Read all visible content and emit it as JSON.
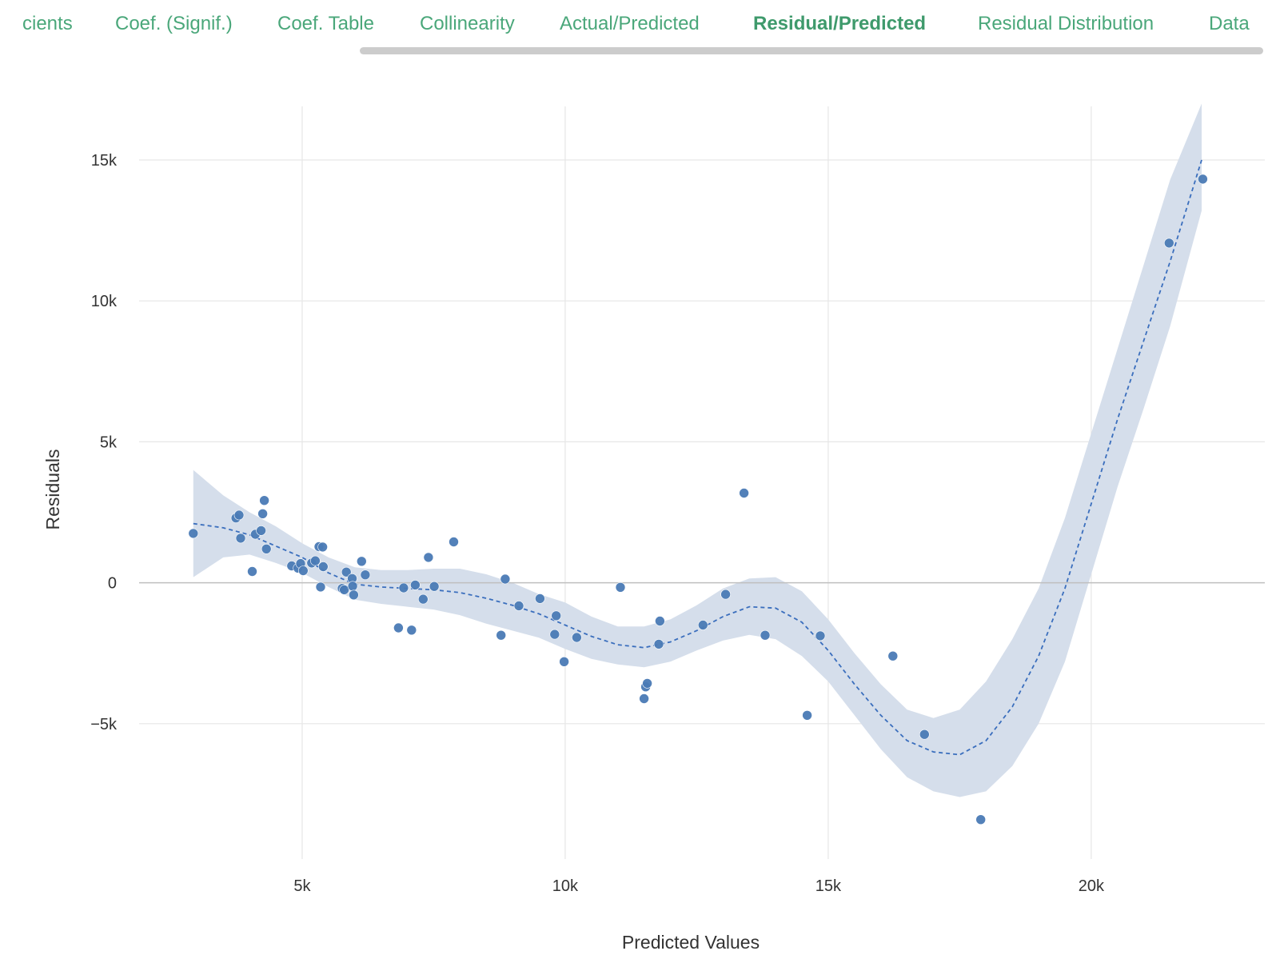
{
  "tabs": [
    {
      "label": "cients",
      "active": false
    },
    {
      "label": "Coef. (Signif.)",
      "active": false
    },
    {
      "label": "Coef. Table",
      "active": false
    },
    {
      "label": "Collinearity",
      "active": false
    },
    {
      "label": "Actual/Predicted",
      "active": false
    },
    {
      "label": "Residual/Predicted",
      "active": true
    },
    {
      "label": "Residual Distribution",
      "active": false
    },
    {
      "label": "Data",
      "active": false
    }
  ],
  "colors": {
    "accent": "#4aa77a",
    "point": "#4a7ab5",
    "band": "#d5deeb",
    "trend": "#3a6ebd",
    "grid": "#e6e6e6",
    "zero_line": "#bfbfbf"
  },
  "chart_data": {
    "type": "scatter",
    "xlabel": "Predicted Values",
    "ylabel": "Residuals",
    "xlim": [
      1900,
      23300
    ],
    "ylim": [
      -9800,
      16900
    ],
    "xticks": [
      {
        "value": 5000,
        "label": "5k"
      },
      {
        "value": 10000,
        "label": "10k"
      },
      {
        "value": 15000,
        "label": "15k"
      },
      {
        "value": 20000,
        "label": "20k"
      }
    ],
    "yticks": [
      {
        "value": 15000,
        "label": "15k"
      },
      {
        "value": 10000,
        "label": "10k"
      },
      {
        "value": 5000,
        "label": "5k"
      },
      {
        "value": 0,
        "label": "0"
      },
      {
        "value": -5000,
        "label": "−5k"
      }
    ],
    "grid": true,
    "points": [
      [
        2930,
        1750
      ],
      [
        3740,
        2300
      ],
      [
        3800,
        2400
      ],
      [
        3830,
        1580
      ],
      [
        4050,
        400
      ],
      [
        4110,
        1720
      ],
      [
        4220,
        1850
      ],
      [
        4250,
        2450
      ],
      [
        4280,
        2920
      ],
      [
        4320,
        1200
      ],
      [
        4800,
        600
      ],
      [
        4920,
        520
      ],
      [
        4970,
        680
      ],
      [
        5020,
        430
      ],
      [
        5180,
        700
      ],
      [
        5250,
        780
      ],
      [
        5320,
        1280
      ],
      [
        5350,
        -150
      ],
      [
        5390,
        1270
      ],
      [
        5400,
        570
      ],
      [
        5760,
        -200
      ],
      [
        5800,
        -250
      ],
      [
        5840,
        380
      ],
      [
        5950,
        150
      ],
      [
        5960,
        -120
      ],
      [
        5980,
        -430
      ],
      [
        6130,
        760
      ],
      [
        6200,
        280
      ],
      [
        6830,
        -1600
      ],
      [
        6930,
        -180
      ],
      [
        7080,
        -1680
      ],
      [
        7150,
        -80
      ],
      [
        7300,
        -580
      ],
      [
        7400,
        900
      ],
      [
        7510,
        -130
      ],
      [
        7880,
        1450
      ],
      [
        8780,
        -1860
      ],
      [
        8860,
        130
      ],
      [
        9120,
        -820
      ],
      [
        9520,
        -560
      ],
      [
        9800,
        -1830
      ],
      [
        9830,
        -1170
      ],
      [
        9980,
        -2800
      ],
      [
        10220,
        -1940
      ],
      [
        11050,
        -160
      ],
      [
        11500,
        -4110
      ],
      [
        11530,
        -3690
      ],
      [
        11560,
        -3570
      ],
      [
        11780,
        -2180
      ],
      [
        11800,
        -1360
      ],
      [
        12620,
        -1500
      ],
      [
        13050,
        -410
      ],
      [
        13400,
        3180
      ],
      [
        13800,
        -1860
      ],
      [
        14600,
        -4700
      ],
      [
        14850,
        -1880
      ],
      [
        16230,
        -2600
      ],
      [
        16830,
        -5380
      ],
      [
        17900,
        -8400
      ],
      [
        21480,
        12050
      ],
      [
        22120,
        14320
      ]
    ],
    "trend": [
      [
        2930,
        2100
      ],
      [
        3500,
        1950
      ],
      [
        4000,
        1700
      ],
      [
        4500,
        1300
      ],
      [
        5000,
        900
      ],
      [
        5500,
        350
      ],
      [
        6000,
        -50
      ],
      [
        6500,
        -150
      ],
      [
        7000,
        -200
      ],
      [
        7500,
        -250
      ],
      [
        8000,
        -350
      ],
      [
        8500,
        -550
      ],
      [
        9000,
        -800
      ],
      [
        9500,
        -1100
      ],
      [
        10000,
        -1500
      ],
      [
        10500,
        -1900
      ],
      [
        11000,
        -2200
      ],
      [
        11500,
        -2300
      ],
      [
        12000,
        -2100
      ],
      [
        12500,
        -1700
      ],
      [
        13000,
        -1200
      ],
      [
        13500,
        -850
      ],
      [
        14000,
        -900
      ],
      [
        14500,
        -1400
      ],
      [
        15000,
        -2400
      ],
      [
        15500,
        -3600
      ],
      [
        16000,
        -4700
      ],
      [
        16500,
        -5600
      ],
      [
        17000,
        -6000
      ],
      [
        17500,
        -6100
      ],
      [
        18000,
        -5600
      ],
      [
        18500,
        -4400
      ],
      [
        19000,
        -2600
      ],
      [
        19500,
        -200
      ],
      [
        20000,
        2800
      ],
      [
        20500,
        5800
      ],
      [
        21000,
        8600
      ],
      [
        21500,
        11400
      ],
      [
        22100,
        15000
      ]
    ],
    "band_upper": [
      [
        2930,
        4000
      ],
      [
        3500,
        3100
      ],
      [
        4000,
        2500
      ],
      [
        4500,
        2000
      ],
      [
        5000,
        1400
      ],
      [
        5500,
        900
      ],
      [
        6000,
        550
      ],
      [
        6500,
        450
      ],
      [
        7000,
        450
      ],
      [
        7500,
        500
      ],
      [
        8000,
        500
      ],
      [
        8500,
        300
      ],
      [
        9000,
        0
      ],
      [
        9500,
        -400
      ],
      [
        10000,
        -700
      ],
      [
        10500,
        -1200
      ],
      [
        11000,
        -1550
      ],
      [
        11500,
        -1550
      ],
      [
        12000,
        -1300
      ],
      [
        12500,
        -800
      ],
      [
        13000,
        -200
      ],
      [
        13500,
        150
      ],
      [
        14000,
        200
      ],
      [
        14500,
        -300
      ],
      [
        15000,
        -1300
      ],
      [
        15500,
        -2500
      ],
      [
        16000,
        -3600
      ],
      [
        16500,
        -4500
      ],
      [
        17000,
        -4800
      ],
      [
        17500,
        -4500
      ],
      [
        18000,
        -3500
      ],
      [
        18500,
        -2000
      ],
      [
        19000,
        -200
      ],
      [
        19500,
        2300
      ],
      [
        20000,
        5300
      ],
      [
        20500,
        8300
      ],
      [
        21000,
        11300
      ],
      [
        21500,
        14300
      ],
      [
        22100,
        17000
      ]
    ],
    "band_lower": [
      [
        2930,
        200
      ],
      [
        3500,
        900
      ],
      [
        4000,
        1000
      ],
      [
        4500,
        700
      ],
      [
        5000,
        350
      ],
      [
        5500,
        -150
      ],
      [
        6000,
        -600
      ],
      [
        6500,
        -750
      ],
      [
        7000,
        -850
      ],
      [
        7500,
        -950
      ],
      [
        8000,
        -1150
      ],
      [
        8500,
        -1450
      ],
      [
        9000,
        -1700
      ],
      [
        9500,
        -1950
      ],
      [
        10000,
        -2350
      ],
      [
        10500,
        -2700
      ],
      [
        11000,
        -2900
      ],
      [
        11500,
        -3000
      ],
      [
        12000,
        -2800
      ],
      [
        12500,
        -2400
      ],
      [
        13000,
        -2050
      ],
      [
        13500,
        -1850
      ],
      [
        14000,
        -2000
      ],
      [
        14500,
        -2600
      ],
      [
        15000,
        -3500
      ],
      [
        15500,
        -4700
      ],
      [
        16000,
        -5900
      ],
      [
        16500,
        -6900
      ],
      [
        17000,
        -7400
      ],
      [
        17500,
        -7600
      ],
      [
        18000,
        -7400
      ],
      [
        18500,
        -6500
      ],
      [
        19000,
        -5000
      ],
      [
        19500,
        -2800
      ],
      [
        20000,
        300
      ],
      [
        20500,
        3400
      ],
      [
        21000,
        6200
      ],
      [
        21500,
        9100
      ],
      [
        22100,
        13200
      ]
    ]
  }
}
